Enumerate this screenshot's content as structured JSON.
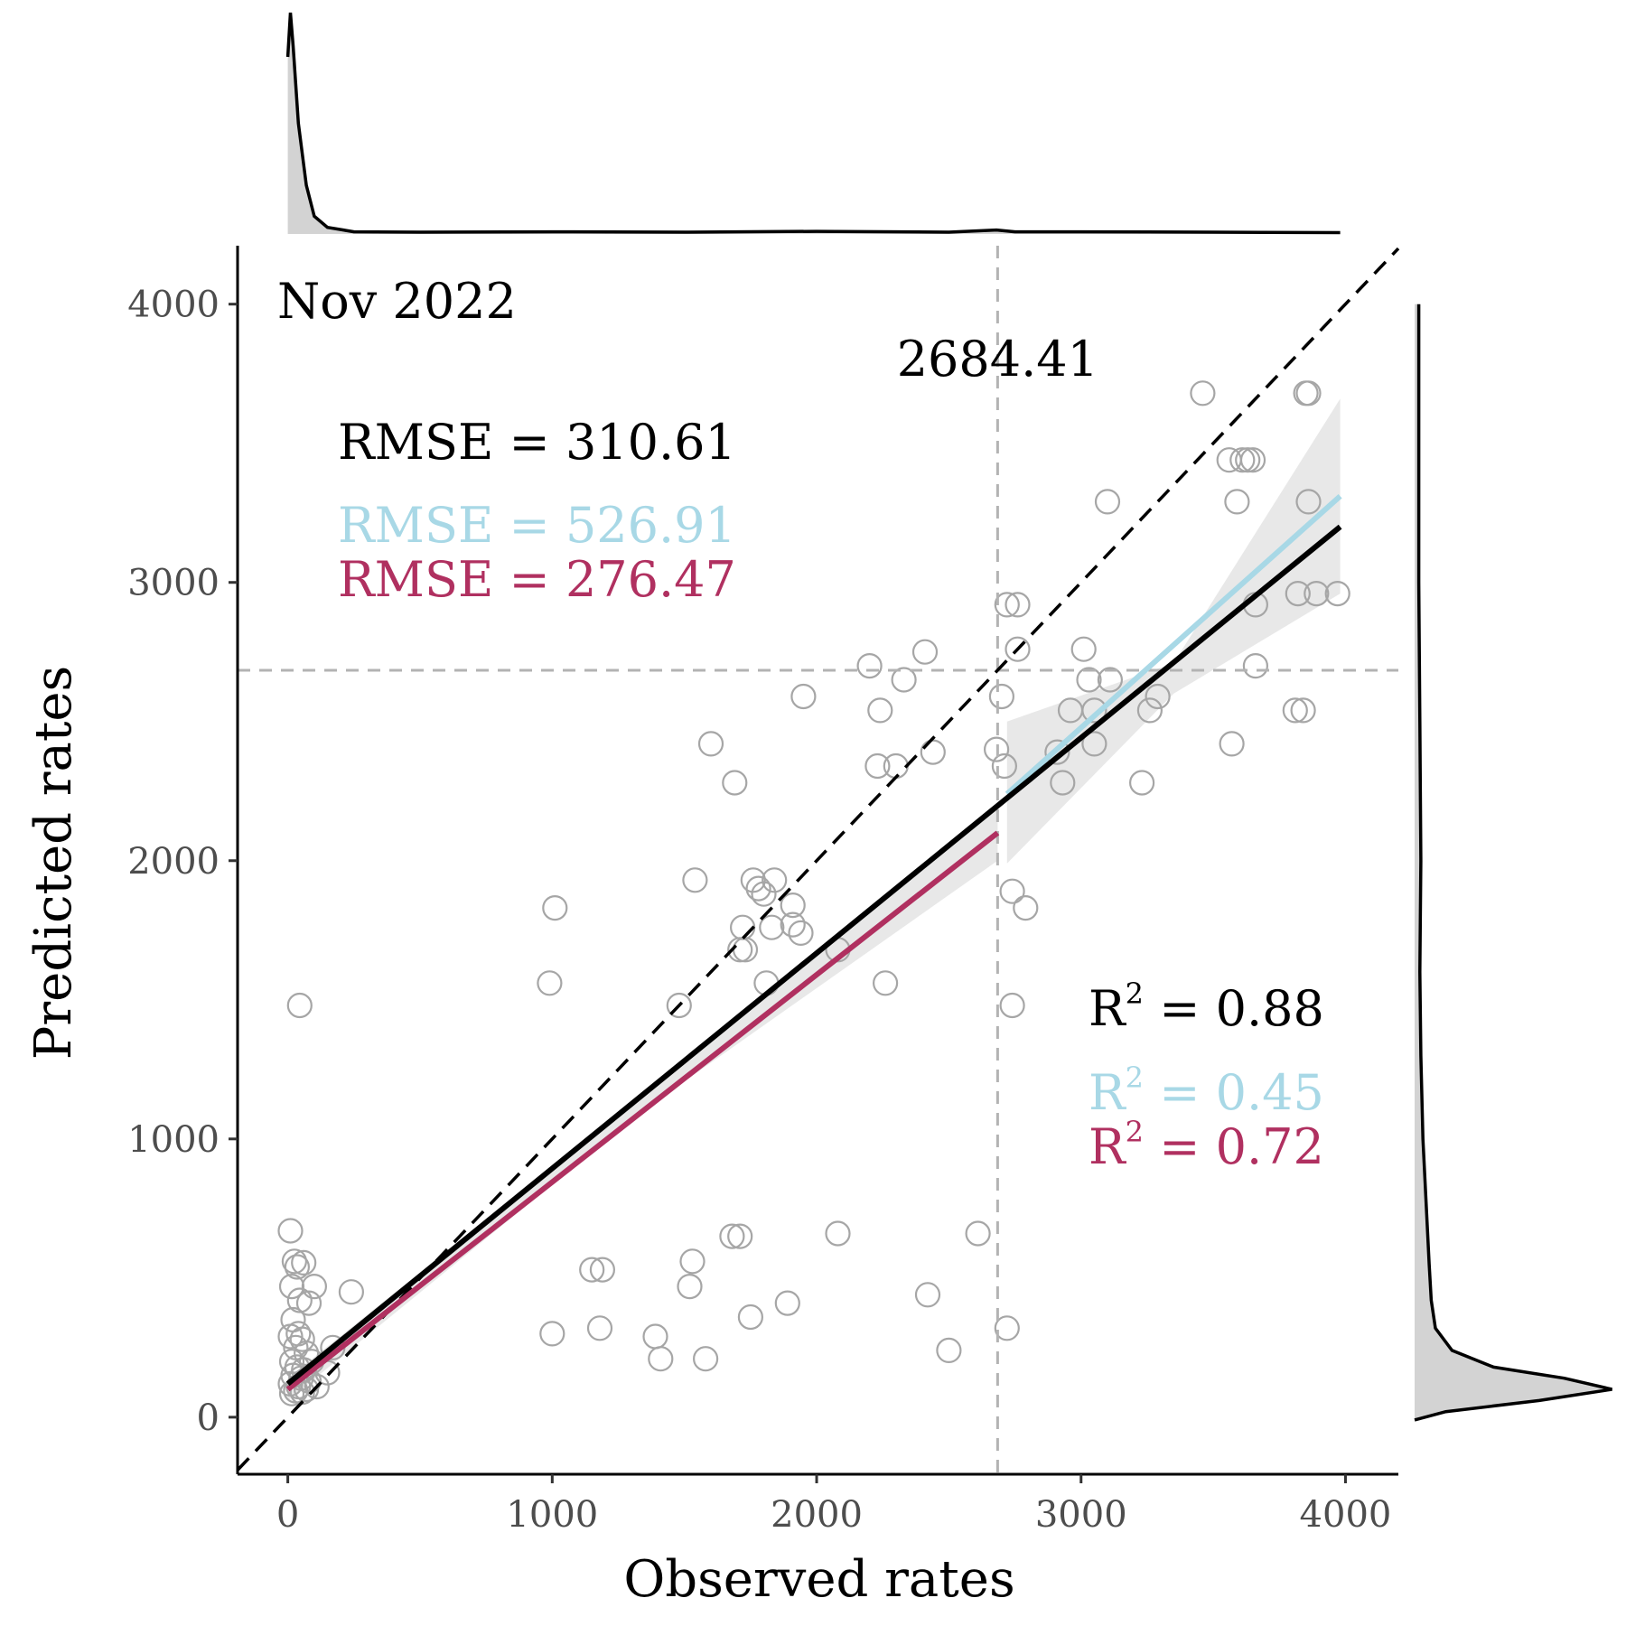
{
  "chart_data": {
    "type": "scatter",
    "panel_label": "Nov 2022",
    "xlabel": "Observed rates",
    "ylabel": "Predicted rates",
    "xlim": [
      -190,
      4200
    ],
    "ylim": [
      -205,
      4210
    ],
    "x_ticks": [
      0,
      1000,
      2000,
      3000,
      4000
    ],
    "y_ticks": [
      0,
      1000,
      2000,
      3000,
      4000
    ],
    "grid": false,
    "threshold": {
      "value": 2684.41,
      "label": "2684.41"
    },
    "colors": {
      "points": "#a6a6a6",
      "overall": "#000000",
      "below_threshold": "#b03060",
      "above_threshold": "#a8d8e6",
      "reference": "#000000",
      "threshold_line": "#b3b3b3",
      "band": "#d9d9d9"
    },
    "stats": {
      "rmse": [
        {
          "label": "RMSE = 310.61",
          "color": "#000000"
        },
        {
          "label": "RMSE = 526.91",
          "color": "#a8d8e6"
        },
        {
          "label": "RMSE = 276.47",
          "color": "#b03060"
        }
      ],
      "r2": [
        {
          "prefix": "R",
          "sup": "2",
          "rest": " = 0.88",
          "color": "#000000"
        },
        {
          "prefix": "R",
          "sup": "2",
          "rest": " = 0.45",
          "color": "#a8d8e6"
        },
        {
          "prefix": "R",
          "sup": "2",
          "rest": " = 0.72",
          "color": "#b03060"
        }
      ]
    },
    "series": [
      {
        "kind": "points",
        "points": [
          [
            10,
            670
          ],
          [
            25,
            560
          ],
          [
            35,
            540
          ],
          [
            60,
            555
          ],
          [
            15,
            470
          ],
          [
            45,
            420
          ],
          [
            80,
            410
          ],
          [
            20,
            350
          ],
          [
            40,
            300
          ],
          [
            10,
            290
          ],
          [
            55,
            280
          ],
          [
            100,
            470
          ],
          [
            30,
            250
          ],
          [
            70,
            230
          ],
          [
            90,
            200
          ],
          [
            15,
            200
          ],
          [
            35,
            180
          ],
          [
            60,
            170
          ],
          [
            20,
            150
          ],
          [
            50,
            140
          ],
          [
            80,
            130
          ],
          [
            10,
            120
          ],
          [
            40,
            110
          ],
          [
            70,
            100
          ],
          [
            30,
            95
          ],
          [
            55,
            90
          ],
          [
            15,
            85
          ],
          [
            110,
            110
          ],
          [
            150,
            160
          ],
          [
            240,
            450
          ],
          [
            170,
            250
          ],
          [
            45,
            1480
          ],
          [
            990,
            1560
          ],
          [
            1010,
            1830
          ],
          [
            1000,
            300
          ],
          [
            1150,
            530
          ],
          [
            1190,
            530
          ],
          [
            1180,
            320
          ],
          [
            1390,
            290
          ],
          [
            1410,
            210
          ],
          [
            1480,
            1480
          ],
          [
            1520,
            470
          ],
          [
            1530,
            560
          ],
          [
            1540,
            1930
          ],
          [
            1580,
            210
          ],
          [
            1600,
            2420
          ],
          [
            1690,
            2280
          ],
          [
            1680,
            650
          ],
          [
            1710,
            650
          ],
          [
            1710,
            1680
          ],
          [
            1730,
            1680
          ],
          [
            1720,
            1760
          ],
          [
            1750,
            360
          ],
          [
            1760,
            1930
          ],
          [
            1780,
            1900
          ],
          [
            1800,
            1880
          ],
          [
            1810,
            1560
          ],
          [
            1830,
            1760
          ],
          [
            1840,
            1930
          ],
          [
            1890,
            410
          ],
          [
            1910,
            1840
          ],
          [
            1910,
            1770
          ],
          [
            1940,
            1740
          ],
          [
            1950,
            2590
          ],
          [
            2080,
            1680
          ],
          [
            2080,
            660
          ],
          [
            2200,
            2700
          ],
          [
            2230,
            2340
          ],
          [
            2240,
            2540
          ],
          [
            2260,
            1560
          ],
          [
            2300,
            2340
          ],
          [
            2330,
            2650
          ],
          [
            2410,
            2750
          ],
          [
            2420,
            440
          ],
          [
            2440,
            2390
          ],
          [
            2500,
            240
          ],
          [
            2610,
            660
          ],
          [
            2680,
            2400
          ],
          [
            2700,
            2590
          ],
          [
            2710,
            2340
          ],
          [
            2720,
            2920
          ],
          [
            2720,
            320
          ],
          [
            2740,
            1890
          ],
          [
            2740,
            1480
          ],
          [
            2760,
            2760
          ],
          [
            2760,
            2920
          ],
          [
            2790,
            1830
          ],
          [
            2910,
            2390
          ],
          [
            2930,
            2280
          ],
          [
            2960,
            2540
          ],
          [
            3010,
            2760
          ],
          [
            3030,
            2650
          ],
          [
            3050,
            2540
          ],
          [
            3050,
            2420
          ],
          [
            3100,
            3290
          ],
          [
            3110,
            2650
          ],
          [
            3230,
            2280
          ],
          [
            3260,
            2540
          ],
          [
            3290,
            2590
          ],
          [
            3460,
            3680
          ],
          [
            3560,
            3440
          ],
          [
            3570,
            2420
          ],
          [
            3590,
            3290
          ],
          [
            3610,
            3440
          ],
          [
            3630,
            3440
          ],
          [
            3650,
            3440
          ],
          [
            3660,
            2920
          ],
          [
            3660,
            2700
          ],
          [
            3810,
            2540
          ],
          [
            3820,
            2960
          ],
          [
            3840,
            2540
          ],
          [
            3850,
            3680
          ],
          [
            3860,
            3680
          ],
          [
            3860,
            3290
          ],
          [
            3890,
            2960
          ],
          [
            3970,
            2960
          ]
        ]
      },
      {
        "kind": "line",
        "name": "overall_fit",
        "x": [
          0,
          3980
        ],
        "y": [
          120,
          3200
        ]
      },
      {
        "kind": "line",
        "name": "below_fit",
        "x": [
          0,
          2684.41
        ],
        "y": [
          100,
          2100
        ]
      },
      {
        "kind": "line",
        "name": "above_fit",
        "x": [
          2720,
          3980
        ],
        "y": [
          2240,
          3310
        ]
      },
      {
        "kind": "band",
        "name": "above_ci",
        "x": [
          2720,
          3350,
          3980
        ],
        "lo": [
          1990,
          2600,
          2960
        ],
        "hi": [
          2500,
          2710,
          3660
        ]
      },
      {
        "kind": "band",
        "name": "below_ci",
        "x": [
          0,
          1340,
          2684.41
        ],
        "lo": [
          60,
          1100,
          2000
        ],
        "hi": [
          140,
          1160,
          2200
        ]
      },
      {
        "kind": "line",
        "name": "identity",
        "x": [
          -190,
          4200
        ],
        "y": [
          -190,
          4200
        ]
      }
    ],
    "marginal_top": {
      "x": [
        0,
        10,
        20,
        40,
        70,
        100,
        150,
        250,
        500,
        1000,
        1500,
        2000,
        2500,
        2680,
        2750,
        3000,
        3500,
        3980
      ],
      "density": [
        0.8,
        1.0,
        0.85,
        0.5,
        0.22,
        0.08,
        0.03,
        0.01,
        0.008,
        0.01,
        0.008,
        0.012,
        0.008,
        0.018,
        0.01,
        0.01,
        0.008,
        0.006
      ]
    },
    "marginal_right": {
      "y": [
        -10,
        20,
        60,
        100,
        140,
        180,
        240,
        320,
        420,
        550,
        700,
        850,
        1000,
        1300,
        1600,
        2000,
        2500,
        3000,
        3500,
        4000
      ],
      "density": [
        0.0,
        0.15,
        0.6,
        0.95,
        0.72,
        0.38,
        0.18,
        0.1,
        0.08,
        0.07,
        0.06,
        0.05,
        0.04,
        0.03,
        0.025,
        0.03,
        0.025,
        0.02,
        0.02,
        0.02
      ]
    }
  }
}
